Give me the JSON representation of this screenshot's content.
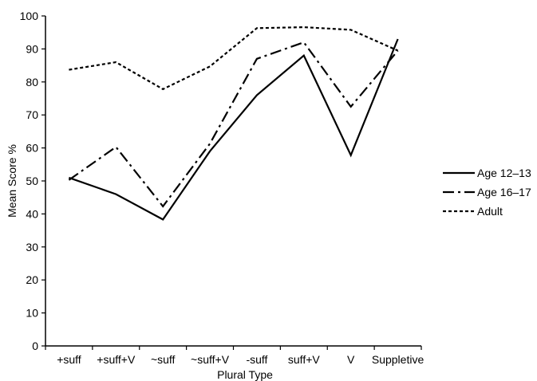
{
  "chart_data": {
    "type": "line",
    "title": "",
    "xlabel": "Plural Type",
    "ylabel": "Mean Score %",
    "ylim": [
      0,
      100
    ],
    "yticks": [
      0,
      10,
      20,
      30,
      40,
      50,
      60,
      70,
      80,
      90,
      100
    ],
    "grid": false,
    "legend_position": "right",
    "categories": [
      "+suff",
      "+suff+V",
      "~suff",
      "~suff+V",
      "-suff",
      "suff+V",
      "V",
      "Suppletive"
    ],
    "category_display": [
      "+suff",
      "+suff+V",
      "~suff",
      "~suff+V",
      "-suff",
      "suff+V",
      "V",
      "Suppletive"
    ],
    "series": [
      {
        "name": "Age 12–13",
        "style": "solid",
        "color": "#000000",
        "values": [
          51,
          46,
          38.3,
          59,
          76,
          88,
          57.8,
          93
        ]
      },
      {
        "name": "Age 16–17",
        "style": "dash-dot",
        "color": "#000000",
        "values": [
          50.3,
          60.3,
          42.3,
          61.3,
          87,
          92,
          72.5,
          89.5
        ]
      },
      {
        "name": "Adult",
        "style": "dashed",
        "color": "#000000",
        "values": [
          83.7,
          86,
          77.8,
          84.7,
          96.3,
          96.6,
          95.8,
          89.5
        ]
      }
    ]
  }
}
